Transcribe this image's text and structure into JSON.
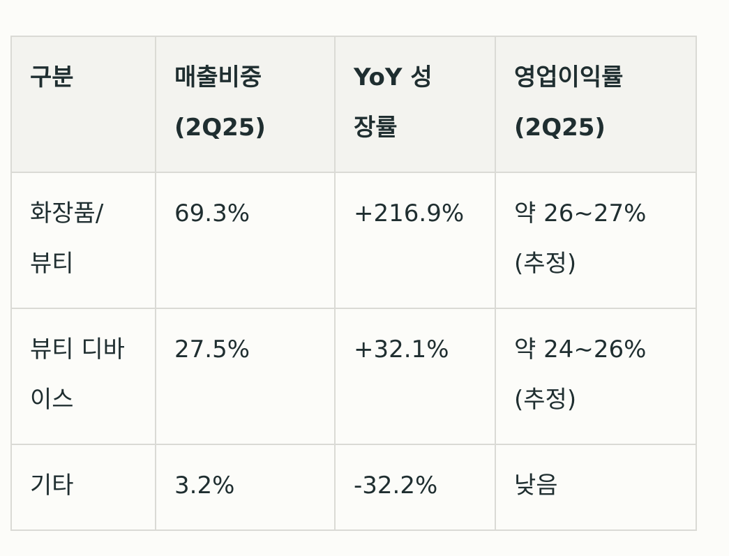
{
  "table": {
    "header": [
      [
        "구분"
      ],
      [
        "매출비중",
        "(2Q25)"
      ],
      [
        "YoY 성",
        "장률"
      ],
      [
        "영업이익률",
        "(2Q25)"
      ]
    ],
    "rows": [
      [
        [
          "화장품/",
          "뷰티"
        ],
        [
          "69.3%"
        ],
        [
          "+216.9%"
        ],
        [
          "약 26~27%",
          "(추정)"
        ]
      ],
      [
        [
          "뷰티 디바",
          "이스"
        ],
        [
          "27.5%"
        ],
        [
          "+32.1%"
        ],
        [
          "약 24~26%",
          "(추정)"
        ]
      ],
      [
        [
          "기타"
        ],
        [
          "3.2%"
        ],
        [
          "-32.2%"
        ],
        [
          "낮음"
        ]
      ]
    ]
  }
}
